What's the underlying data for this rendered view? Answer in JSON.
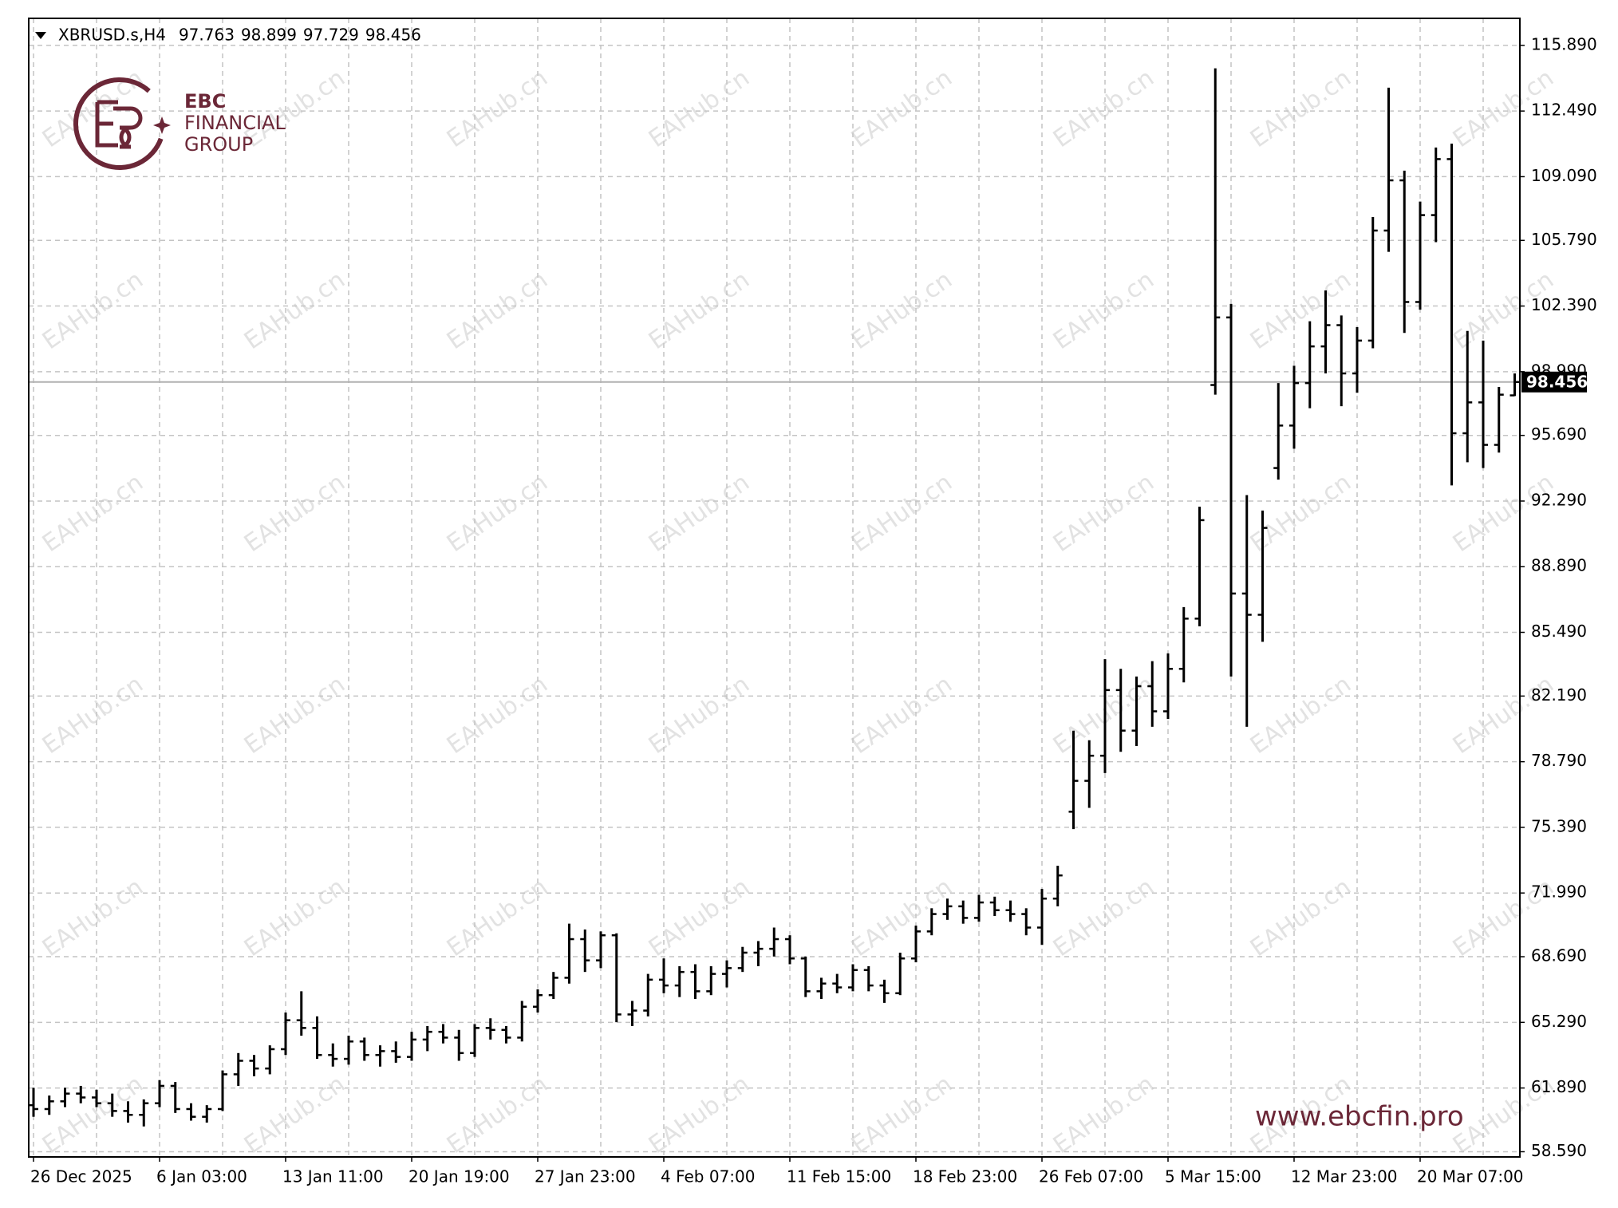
{
  "chart_data": {
    "type": "ohlc",
    "symbol": "XBRUSD.s,H4",
    "logo": {
      "line1": "EBC",
      "line2": "FINANCIAL",
      "line3": "GROUP"
    },
    "website": "www.ebcfin.pro",
    "watermark": "EAHub.cn",
    "color": "#000000",
    "grid": true,
    "ylim": [
      58.32,
      117.29
    ],
    "yticks": [
      {
        "value": 115.89,
        "label": "115.890"
      },
      {
        "value": 112.49,
        "label": "112.490"
      },
      {
        "value": 109.09,
        "label": "109.090"
      },
      {
        "value": 105.79,
        "label": "105.790"
      },
      {
        "value": 102.39,
        "label": "102.390"
      },
      {
        "value": 98.99,
        "label": "98.990"
      },
      {
        "value": 95.69,
        "label": "95.690"
      },
      {
        "value": 92.29,
        "label": "92.290"
      },
      {
        "value": 88.89,
        "label": "88.890"
      },
      {
        "value": 85.49,
        "label": "85.490"
      },
      {
        "value": 82.19,
        "label": "82.190"
      },
      {
        "value": 78.79,
        "label": "78.790"
      },
      {
        "value": 75.39,
        "label": "75.390"
      },
      {
        "value": 71.99,
        "label": "71.990"
      },
      {
        "value": 68.69,
        "label": "68.690"
      },
      {
        "value": 65.29,
        "label": "65.290"
      },
      {
        "value": 61.89,
        "label": "61.890"
      },
      {
        "value": 58.59,
        "label": "58.590"
      }
    ],
    "categories": [
      "26 Dec 2025",
      null,
      null,
      null,
      null,
      null,
      null,
      null,
      "6 Jan 03:00",
      null,
      null,
      null,
      null,
      null,
      null,
      null,
      "13 Jan 11:00",
      null,
      null,
      null,
      null,
      null,
      null,
      null,
      "20 Jan 19:00",
      null,
      null,
      null,
      null,
      null,
      null,
      null,
      "27 Jan 23:00",
      null,
      null,
      null,
      null,
      null,
      null,
      null,
      "4 Feb 07:00",
      null,
      null,
      null,
      null,
      null,
      null,
      null,
      "11 Feb 15:00",
      null,
      null,
      null,
      null,
      null,
      null,
      null,
      "18 Feb 23:00",
      null,
      null,
      null,
      null,
      null,
      null,
      null,
      "26 Feb 07:00",
      null,
      null,
      null,
      null,
      null,
      null,
      null,
      "5 Mar 15:00",
      null,
      null,
      null,
      null,
      null,
      null,
      null,
      "12 Mar 23:00",
      null,
      null,
      null,
      null,
      null,
      null,
      null,
      "20 Mar 07:00",
      null,
      null,
      null,
      null,
      null,
      null
    ],
    "ohlc": [
      [
        61.0,
        61.9,
        60.4,
        60.8
      ],
      [
        60.8,
        61.5,
        60.5,
        61.2
      ],
      [
        61.2,
        61.9,
        60.9,
        61.6
      ],
      [
        61.6,
        62.0,
        61.1,
        61.4
      ],
      [
        61.4,
        61.8,
        60.9,
        61.1
      ],
      [
        61.1,
        61.6,
        60.4,
        60.7
      ],
      [
        60.7,
        61.2,
        60.1,
        60.5
      ],
      [
        60.5,
        61.3,
        59.9,
        61.1
      ],
      [
        61.1,
        62.3,
        60.9,
        62.0
      ],
      [
        62.0,
        62.2,
        60.6,
        60.8
      ],
      [
        60.8,
        61.1,
        60.2,
        60.4
      ],
      [
        60.4,
        61.0,
        60.1,
        60.8
      ],
      [
        60.8,
        62.8,
        60.7,
        62.6
      ],
      [
        62.6,
        63.7,
        62.0,
        63.3
      ],
      [
        63.3,
        63.6,
        62.5,
        62.9
      ],
      [
        62.9,
        64.1,
        62.6,
        63.9
      ],
      [
        63.9,
        65.8,
        63.6,
        65.4
      ],
      [
        65.4,
        66.9,
        64.6,
        65.0
      ],
      [
        65.0,
        65.6,
        63.4,
        63.6
      ],
      [
        63.6,
        64.2,
        63.0,
        63.4
      ],
      [
        63.4,
        64.6,
        63.1,
        64.3
      ],
      [
        64.3,
        64.5,
        63.3,
        63.6
      ],
      [
        63.6,
        64.1,
        63.0,
        63.8
      ],
      [
        63.8,
        64.3,
        63.2,
        63.5
      ],
      [
        63.5,
        64.8,
        63.3,
        64.4
      ],
      [
        64.4,
        65.1,
        63.8,
        64.8
      ],
      [
        64.8,
        65.2,
        64.2,
        64.5
      ],
      [
        64.5,
        64.9,
        63.3,
        63.7
      ],
      [
        63.7,
        65.2,
        63.5,
        65.0
      ],
      [
        65.0,
        65.5,
        64.4,
        64.9
      ],
      [
        64.9,
        65.1,
        64.2,
        64.5
      ],
      [
        64.5,
        66.4,
        64.3,
        66.1
      ],
      [
        66.1,
        67.0,
        65.8,
        66.7
      ],
      [
        66.7,
        67.9,
        66.5,
        67.6
      ],
      [
        67.6,
        70.4,
        67.3,
        69.6
      ],
      [
        69.6,
        70.1,
        67.9,
        68.5
      ],
      [
        68.5,
        70.0,
        68.1,
        69.8
      ],
      [
        69.8,
        69.9,
        65.3,
        65.7
      ],
      [
        65.7,
        66.4,
        65.1,
        65.9
      ],
      [
        65.9,
        67.8,
        65.6,
        67.5
      ],
      [
        67.5,
        68.6,
        66.8,
        67.2
      ],
      [
        67.2,
        68.2,
        66.6,
        67.9
      ],
      [
        67.9,
        68.3,
        66.5,
        66.9
      ],
      [
        66.9,
        68.2,
        66.7,
        67.8
      ],
      [
        67.8,
        68.5,
        67.1,
        68.1
      ],
      [
        68.1,
        69.2,
        67.9,
        68.9
      ],
      [
        68.9,
        69.5,
        68.2,
        69.1
      ],
      [
        69.1,
        70.2,
        68.7,
        69.6
      ],
      [
        69.6,
        69.8,
        68.3,
        68.6
      ],
      [
        68.6,
        68.7,
        66.6,
        66.9
      ],
      [
        66.9,
        67.6,
        66.5,
        67.3
      ],
      [
        67.3,
        67.8,
        66.8,
        67.1
      ],
      [
        67.1,
        68.3,
        66.9,
        68.0
      ],
      [
        68.0,
        68.2,
        66.9,
        67.2
      ],
      [
        67.2,
        67.5,
        66.3,
        66.8
      ],
      [
        66.8,
        68.9,
        66.7,
        68.6
      ],
      [
        68.6,
        70.3,
        68.4,
        70.0
      ],
      [
        70.0,
        71.2,
        69.8,
        70.9
      ],
      [
        70.9,
        71.7,
        70.6,
        71.3
      ],
      [
        71.3,
        71.6,
        70.4,
        70.7
      ],
      [
        70.7,
        71.9,
        70.5,
        71.5
      ],
      [
        71.5,
        71.8,
        70.8,
        71.1
      ],
      [
        71.1,
        71.6,
        70.5,
        70.9
      ],
      [
        70.9,
        71.2,
        69.8,
        70.2
      ],
      [
        70.2,
        72.2,
        69.3,
        71.7
      ],
      [
        71.7,
        73.4,
        71.3,
        72.9
      ],
      [
        76.2,
        80.4,
        75.3,
        77.8
      ],
      [
        77.8,
        79.9,
        76.4,
        79.1
      ],
      [
        79.1,
        84.1,
        78.2,
        82.5
      ],
      [
        82.5,
        83.6,
        79.3,
        80.4
      ],
      [
        80.4,
        83.2,
        79.6,
        82.7
      ],
      [
        82.7,
        84.0,
        80.6,
        81.4
      ],
      [
        81.4,
        84.4,
        81.0,
        83.6
      ],
      [
        83.6,
        86.8,
        82.9,
        86.2
      ],
      [
        86.2,
        92.0,
        85.8,
        91.3
      ],
      [
        98.3,
        114.7,
        97.8,
        101.8
      ],
      [
        101.8,
        102.5,
        83.2,
        87.5
      ],
      [
        87.5,
        92.6,
        80.6,
        86.4
      ],
      [
        86.4,
        91.8,
        85.0,
        90.9
      ],
      [
        94.0,
        98.4,
        93.4,
        96.2
      ],
      [
        96.2,
        99.3,
        95.0,
        98.4
      ],
      [
        98.4,
        101.6,
        97.1,
        100.3
      ],
      [
        100.3,
        103.2,
        98.9,
        101.4
      ],
      [
        101.4,
        101.9,
        97.2,
        98.9
      ],
      [
        98.9,
        101.3,
        97.9,
        100.6
      ],
      [
        100.6,
        107.0,
        100.2,
        106.3
      ],
      [
        106.3,
        113.7,
        105.2,
        108.9
      ],
      [
        108.9,
        109.4,
        101.0,
        102.6
      ],
      [
        102.6,
        107.8,
        102.2,
        107.1
      ],
      [
        107.1,
        110.6,
        105.7,
        110.0
      ],
      [
        110.0,
        110.8,
        93.1,
        95.8
      ],
      [
        95.8,
        101.1,
        94.3,
        97.4
      ],
      [
        97.4,
        100.6,
        94.0,
        95.2
      ],
      [
        95.2,
        98.2,
        94.8,
        97.8
      ],
      [
        97.763,
        98.899,
        97.729,
        98.456
      ]
    ]
  }
}
